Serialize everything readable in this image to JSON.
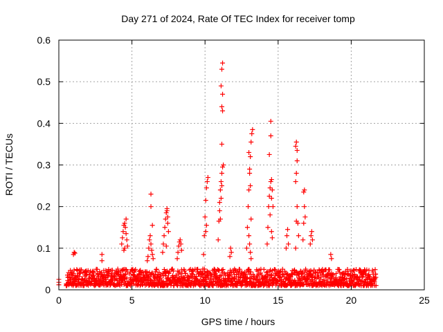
{
  "chart_data": {
    "type": "scatter",
    "title": "Day 271 of 2024, Rate Of TEC Index for receiver tomp",
    "xlabel": "GPS time / hours",
    "ylabel": "ROTI / TECUs",
    "xlim": [
      0,
      25
    ],
    "ylim": [
      0,
      0.6
    ],
    "xticks": [
      0,
      5,
      10,
      15,
      20,
      25
    ],
    "yticks": [
      0,
      0.1,
      0.2,
      0.3,
      0.4,
      0.5,
      0.6
    ],
    "xtick_labels": [
      "0",
      "5",
      "10",
      "15",
      "20",
      "25"
    ],
    "ytick_labels": [
      "0",
      "0.1",
      "0.2",
      "0.3",
      "0.4",
      "0.5",
      "0.6"
    ],
    "grid": true,
    "marker": "+",
    "color": "#ff0000",
    "series": [
      {
        "name": "ROTI",
        "baseline": {
          "x_start": 0.5,
          "x_end": 21.7,
          "y_min": 0.01,
          "y_max": 0.05
        },
        "x": [
          0.0,
          0.0,
          0.0,
          1.0,
          1.05,
          1.1,
          2.95,
          2.95,
          4.3,
          4.35,
          4.4,
          4.45,
          4.5,
          4.55,
          4.6,
          4.65,
          4.7,
          4.45,
          4.5,
          4.6,
          6.05,
          6.1,
          6.15,
          6.2,
          6.25,
          6.3,
          6.35,
          6.4,
          6.45,
          6.3,
          6.3,
          6.4,
          7.1,
          7.15,
          7.2,
          7.25,
          7.3,
          7.35,
          7.4,
          7.45,
          7.5,
          7.35,
          7.4,
          7.45,
          8.1,
          8.15,
          8.2,
          8.25,
          8.3,
          8.35,
          8.4,
          9.9,
          9.95,
          10.0,
          10.05,
          10.1,
          10.15,
          10.2,
          10.05,
          10.1,
          10.9,
          10.95,
          11.0,
          11.05,
          11.1,
          11.15,
          11.2,
          11.25,
          11.0,
          11.05,
          11.1,
          11.15,
          11.15,
          11.15,
          11.2,
          11.2,
          11.1,
          11.15,
          11.2,
          11.7,
          11.75,
          11.8,
          12.85,
          12.9,
          12.95,
          13.0,
          13.05,
          13.1,
          13.15,
          13.2,
          13.25,
          13.0,
          13.05,
          13.1,
          13.15,
          13.0,
          13.05,
          13.1,
          13.15,
          14.25,
          14.3,
          14.35,
          14.4,
          14.45,
          14.5,
          14.55,
          14.6,
          14.65,
          14.4,
          14.5,
          14.5,
          14.55,
          14.45,
          14.55,
          14.6,
          15.55,
          15.6,
          15.65,
          15.7,
          16.2,
          16.25,
          16.3,
          16.35,
          16.4,
          16.2,
          16.25,
          16.3,
          16.3,
          16.2,
          16.25,
          16.7,
          16.75,
          16.8,
          16.85,
          16.75,
          16.8,
          17.2,
          17.25,
          17.3,
          17.35,
          18.6,
          18.65
        ],
        "y": [
          0.025,
          0.018,
          0.012,
          0.085,
          0.09,
          0.088,
          0.085,
          0.07,
          0.11,
          0.125,
          0.14,
          0.155,
          0.16,
          0.15,
          0.135,
          0.12,
          0.105,
          0.095,
          0.1,
          0.17,
          0.07,
          0.08,
          0.1,
          0.12,
          0.13,
          0.11,
          0.095,
          0.085,
          0.075,
          0.2,
          0.23,
          0.155,
          0.09,
          0.11,
          0.13,
          0.15,
          0.17,
          0.185,
          0.19,
          0.175,
          0.14,
          0.105,
          0.195,
          0.16,
          0.075,
          0.09,
          0.105,
          0.115,
          0.12,
          0.11,
          0.095,
          0.085,
          0.13,
          0.175,
          0.215,
          0.245,
          0.26,
          0.27,
          0.14,
          0.155,
          0.12,
          0.165,
          0.21,
          0.24,
          0.26,
          0.28,
          0.295,
          0.3,
          0.19,
          0.17,
          0.22,
          0.25,
          0.35,
          0.44,
          0.47,
          0.43,
          0.49,
          0.53,
          0.545,
          0.08,
          0.1,
          0.09,
          0.1,
          0.15,
          0.2,
          0.24,
          0.28,
          0.32,
          0.355,
          0.375,
          0.385,
          0.33,
          0.29,
          0.25,
          0.17,
          0.13,
          0.11,
          0.09,
          0.075,
          0.11,
          0.15,
          0.2,
          0.225,
          0.245,
          0.26,
          0.265,
          0.24,
          0.2,
          0.325,
          0.37,
          0.405,
          0.22,
          0.18,
          0.14,
          0.125,
          0.1,
          0.13,
          0.145,
          0.11,
          0.1,
          0.165,
          0.2,
          0.16,
          0.13,
          0.26,
          0.28,
          0.31,
          0.335,
          0.345,
          0.355,
          0.12,
          0.16,
          0.2,
          0.175,
          0.235,
          0.24,
          0.11,
          0.13,
          0.14,
          0.12,
          0.085,
          0.075
        ]
      }
    ]
  }
}
